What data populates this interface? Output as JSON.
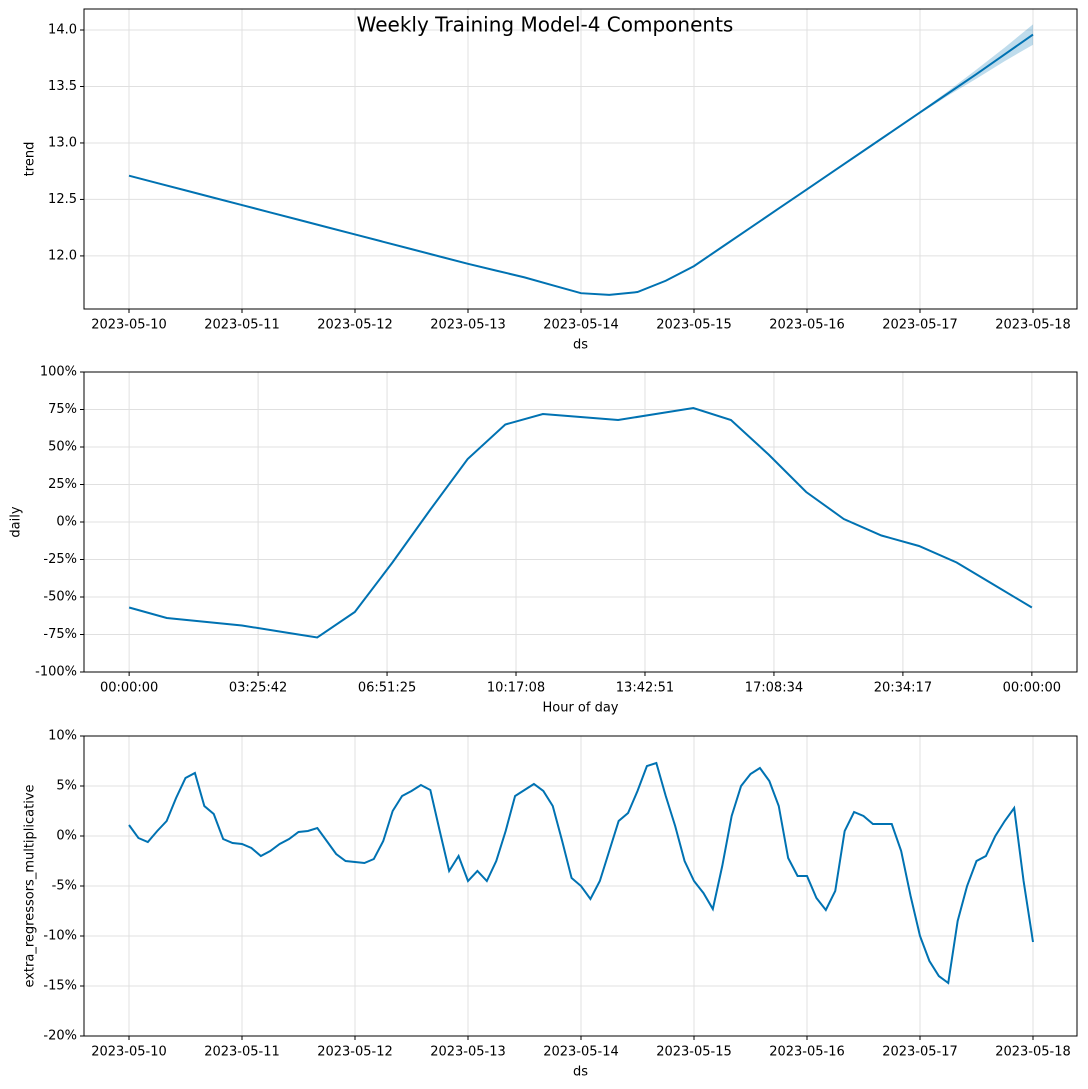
{
  "chart_data": [
    {
      "type": "line",
      "title": "Weekly Training Model-4 Components",
      "xlabel": "ds",
      "ylabel": "trend",
      "color": "#0072B2",
      "grid": true,
      "categories": [
        "2023-05-10",
        null,
        null,
        null,
        "2023-05-11",
        null,
        null,
        null,
        "2023-05-12",
        null,
        null,
        null,
        "2023-05-13",
        null,
        null,
        null,
        "2023-05-14",
        null,
        null,
        null,
        "2023-05-15",
        null,
        null,
        null,
        "2023-05-16",
        null,
        null,
        null,
        "2023-05-17",
        null,
        null,
        null,
        "2023-05-18"
      ],
      "values": [
        12.71,
        12.645,
        12.58,
        12.515,
        12.45,
        12.385,
        12.32,
        12.255,
        12.19,
        12.125,
        12.06,
        11.995,
        11.93,
        11.87,
        11.81,
        11.74,
        11.67,
        11.655,
        11.68,
        11.78,
        11.91,
        12.08,
        12.25,
        12.42,
        12.59,
        12.76,
        12.93,
        13.1,
        13.27,
        13.44,
        13.61,
        13.785,
        13.96
      ],
      "upper": [
        12.71,
        12.645,
        12.58,
        12.515,
        12.45,
        12.385,
        12.32,
        12.255,
        12.19,
        12.125,
        12.06,
        11.995,
        11.93,
        11.87,
        11.81,
        11.74,
        11.67,
        11.655,
        11.68,
        11.78,
        11.91,
        12.08,
        12.25,
        12.42,
        12.59,
        12.76,
        12.93,
        13.1,
        13.28,
        13.46,
        13.65,
        13.845,
        14.05
      ],
      "lower": [
        12.71,
        12.645,
        12.58,
        12.515,
        12.45,
        12.385,
        12.32,
        12.255,
        12.19,
        12.125,
        12.06,
        11.995,
        11.93,
        11.87,
        11.81,
        11.74,
        11.67,
        11.655,
        11.68,
        11.78,
        11.91,
        12.08,
        12.25,
        12.42,
        12.59,
        12.76,
        12.93,
        13.1,
        13.26,
        13.42,
        13.57,
        13.725,
        13.87
      ],
      "ylim": [
        11.53,
        14.186
      ],
      "yticks": [
        {
          "value": 12,
          "label": "12.0"
        },
        12.5,
        {
          "value": 13,
          "label": "13.0"
        },
        13.5,
        {
          "value": 14,
          "label": "14.0"
        }
      ]
    },
    {
      "type": "line",
      "xlabel": "Hour of day",
      "ylabel": "daily",
      "color": "#0072B2",
      "grid": true,
      "x": [
        0,
        1,
        2,
        3,
        4,
        5,
        6,
        7,
        8,
        9,
        10,
        11,
        12,
        13,
        14,
        15,
        16,
        17,
        18,
        19,
        20,
        21,
        22,
        23,
        24
      ],
      "values": [
        -57,
        -64,
        -66.5,
        -69,
        -73,
        -77,
        -60,
        -27,
        8,
        42,
        65,
        72,
        70,
        68,
        72,
        76,
        68,
        45,
        20,
        2,
        -9,
        -16,
        -27,
        -42,
        -57
      ],
      "xlim": [
        -1.2,
        25.2
      ],
      "xticks": [
        {
          "value": 0,
          "label": "00:00:00"
        },
        {
          "value": 3.4286,
          "label": "03:25:42"
        },
        {
          "value": 6.8571,
          "label": "06:51:25"
        },
        {
          "value": 10.2857,
          "label": "10:17:08"
        },
        {
          "value": 13.7143,
          "label": "13:42:51"
        },
        {
          "value": 17.1429,
          "label": "17:08:34"
        },
        {
          "value": 20.5714,
          "label": "20:34:17"
        },
        {
          "value": 24,
          "label": "00:00:00"
        }
      ],
      "ylim": [
        -100,
        100
      ],
      "yticks": [
        {
          "value": -100,
          "label": "-100%"
        },
        {
          "value": -75,
          "label": "-75%"
        },
        {
          "value": -50,
          "label": "-50%"
        },
        {
          "value": -25,
          "label": "-25%"
        },
        {
          "value": 0,
          "label": "0%"
        },
        {
          "value": 25,
          "label": "25%"
        },
        {
          "value": 50,
          "label": "50%"
        },
        {
          "value": 75,
          "label": "75%"
        },
        {
          "value": 100,
          "label": "100%"
        }
      ]
    },
    {
      "type": "line",
      "xlabel": "ds",
      "ylabel": "extra_regressors_multiplicative",
      "color": "#0072B2",
      "grid": true,
      "categories": [
        "2023-05-10",
        null,
        null,
        null,
        null,
        null,
        null,
        null,
        null,
        null,
        null,
        null,
        "2023-05-11",
        null,
        null,
        null,
        null,
        null,
        null,
        null,
        null,
        null,
        null,
        null,
        "2023-05-12",
        null,
        null,
        null,
        null,
        null,
        null,
        null,
        null,
        null,
        null,
        null,
        "2023-05-13",
        null,
        null,
        null,
        null,
        null,
        null,
        null,
        null,
        null,
        null,
        null,
        "2023-05-14",
        null,
        null,
        null,
        null,
        null,
        null,
        null,
        null,
        null,
        null,
        null,
        "2023-05-15",
        null,
        null,
        null,
        null,
        null,
        null,
        null,
        null,
        null,
        null,
        null,
        "2023-05-16",
        null,
        null,
        null,
        null,
        null,
        null,
        null,
        null,
        null,
        null,
        null,
        "2023-05-17",
        null,
        null,
        null,
        null,
        null,
        null,
        null,
        null,
        null,
        null,
        null,
        "2023-05-18"
      ],
      "values": [
        1.1,
        -0.2,
        -0.6,
        0.5,
        1.5,
        3.8,
        5.8,
        6.3,
        3.0,
        2.2,
        -0.3,
        -0.7,
        -0.8,
        -1.2,
        -2.0,
        -1.5,
        -0.8,
        -0.3,
        0.4,
        0.5,
        0.8,
        -0.5,
        -1.8,
        -2.5,
        -2.6,
        -2.7,
        -2.3,
        -0.5,
        2.5,
        4.0,
        4.5,
        5.1,
        4.6,
        0.5,
        -3.5,
        -2.0,
        -4.5,
        -3.5,
        -4.5,
        -2.5,
        0.5,
        4.0,
        4.6,
        5.2,
        4.5,
        3.0,
        -0.5,
        -4.2,
        -5.0,
        -6.3,
        -4.5,
        -1.5,
        1.5,
        2.3,
        4.5,
        7.0,
        7.3,
        4.0,
        1.0,
        -2.5,
        -4.5,
        -5.7,
        -7.3,
        -3.0,
        2.0,
        5.0,
        6.2,
        6.8,
        5.5,
        3.0,
        -2.2,
        -4.0,
        -4.0,
        -6.2,
        -7.4,
        -5.5,
        0.5,
        2.4,
        2.0,
        1.2,
        1.2,
        1.2,
        -1.5,
        -6.0,
        -10.0,
        -12.5,
        -14.0,
        -14.7,
        -8.5,
        -5.0,
        -2.5,
        -2.0,
        0.0,
        1.5,
        2.8,
        -4.5,
        -10.6
      ],
      "ylim": [
        -20,
        10
      ],
      "yticks": [
        {
          "value": -20,
          "label": "-20%"
        },
        {
          "value": -15,
          "label": "-15%"
        },
        {
          "value": -10,
          "label": "-10%"
        },
        {
          "value": -5,
          "label": "-5%"
        },
        {
          "value": 0,
          "label": "0%"
        },
        {
          "value": 5,
          "label": "5%"
        },
        {
          "value": 10,
          "label": "10%"
        }
      ]
    }
  ]
}
